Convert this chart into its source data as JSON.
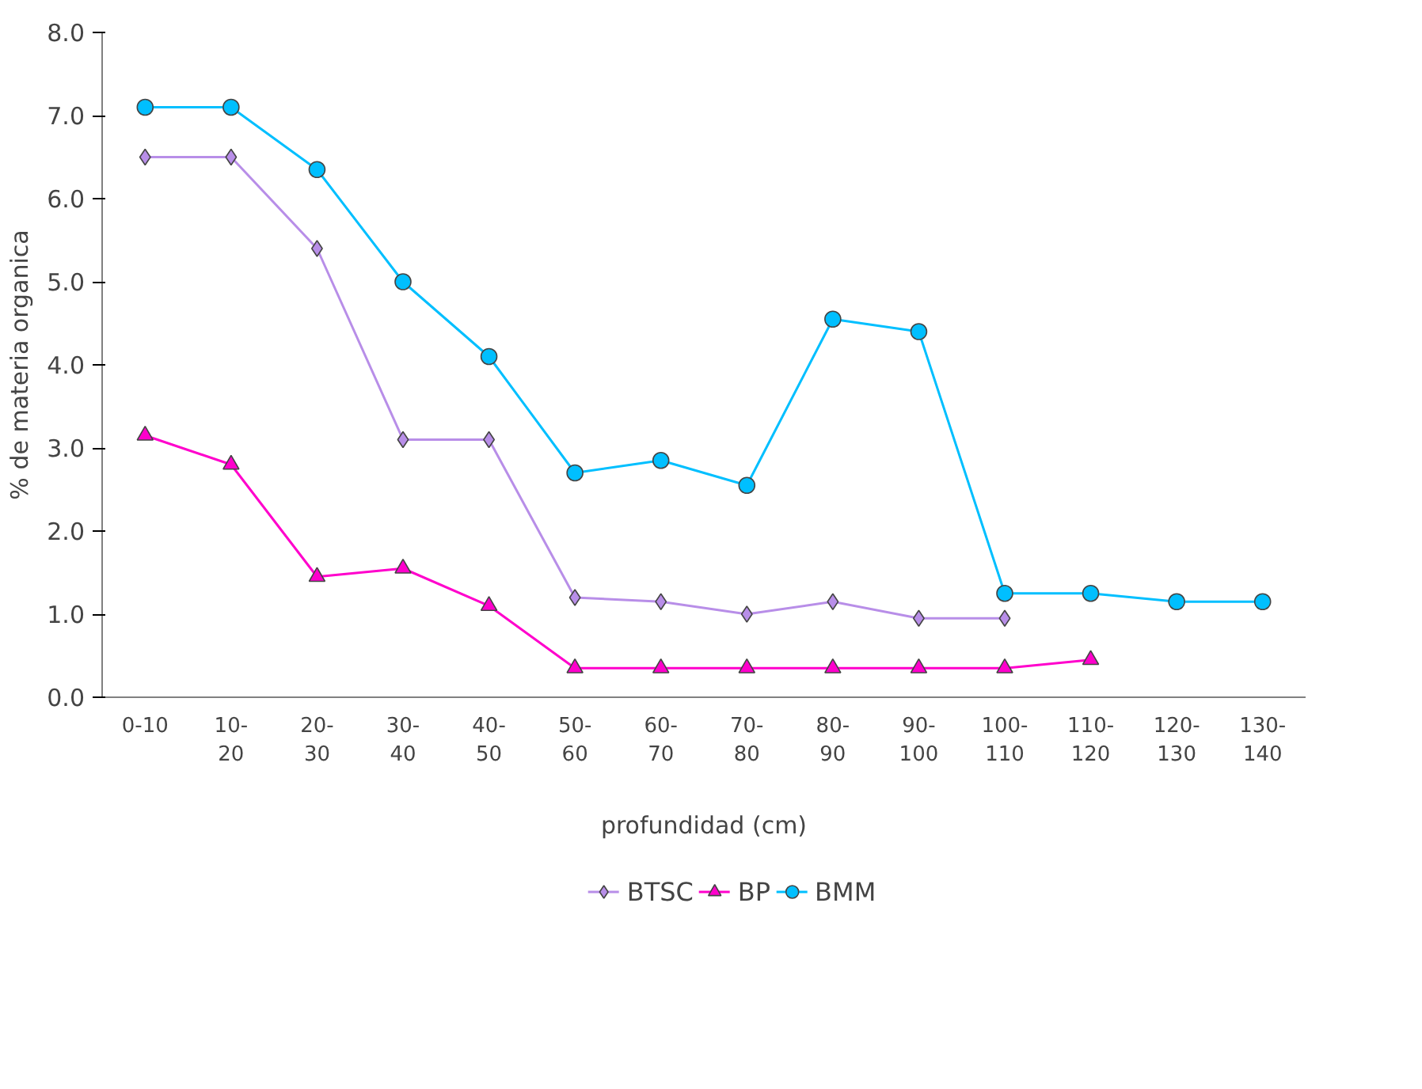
{
  "chart_data": {
    "type": "line",
    "xlabel": "profundidad (cm)",
    "ylabel": "% de materia organica",
    "categories": [
      "0-10",
      "10-\n20",
      "20-\n30",
      "30-\n40",
      "40-\n50",
      "50-\n60",
      "60-\n70",
      "70-\n80",
      "80-\n90",
      "90-\n100",
      "100-\n110",
      "110-\n120",
      "120-\n130",
      "130-\n140"
    ],
    "series": [
      {
        "name": "BTSC",
        "color": "#b88ee8",
        "marker": "diamond",
        "values": [
          6.5,
          6.5,
          5.4,
          3.1,
          3.1,
          1.2,
          1.15,
          1.0,
          1.15,
          0.95,
          0.95,
          null,
          null,
          null
        ]
      },
      {
        "name": "BP",
        "color": "#ff00cc",
        "marker": "triangle",
        "values": [
          3.15,
          2.8,
          1.45,
          1.55,
          1.1,
          0.35,
          0.35,
          0.35,
          0.35,
          0.35,
          0.35,
          0.45,
          null,
          null
        ]
      },
      {
        "name": "BMM",
        "color": "#00bfff",
        "marker": "circle",
        "values": [
          7.1,
          7.1,
          6.35,
          5.0,
          4.1,
          2.7,
          2.85,
          2.55,
          4.55,
          4.4,
          1.25,
          1.25,
          1.15,
          1.15
        ]
      }
    ],
    "ylim": [
      0,
      8
    ],
    "yticks": [
      {
        "value": 0,
        "label": "0.0"
      },
      {
        "value": 1,
        "label": "1.0"
      },
      {
        "value": 2,
        "label": "2.0"
      },
      {
        "value": 3,
        "label": "3.0"
      },
      {
        "value": 4,
        "label": "4.0"
      },
      {
        "value": 5,
        "label": "5.0"
      },
      {
        "value": 6,
        "label": "6.0"
      },
      {
        "value": 7,
        "label": "7.0"
      },
      {
        "value": 8,
        "label": "8.0"
      }
    ],
    "grid": false,
    "legend": "bottom",
    "line_style": "solid"
  }
}
